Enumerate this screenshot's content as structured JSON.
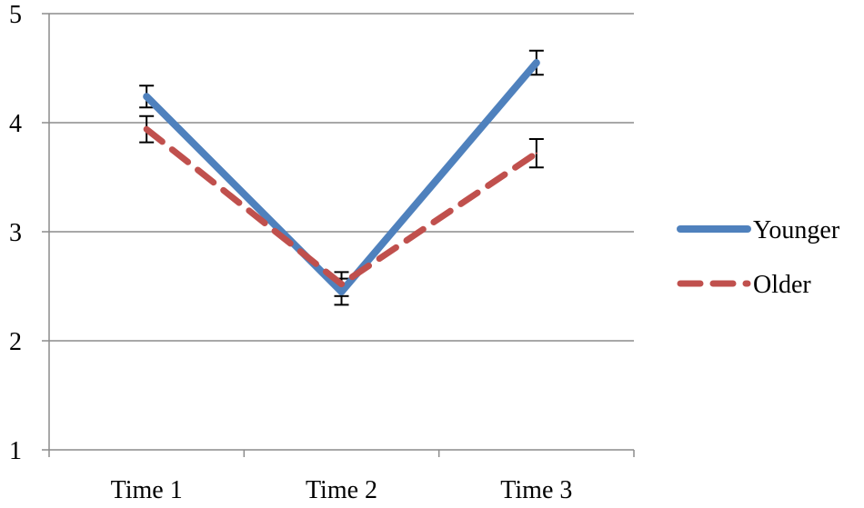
{
  "chart_data": {
    "type": "line",
    "title": "",
    "xlabel": "",
    "ylabel": "",
    "categories": [
      "Time 1",
      "Time 2",
      "Time 3"
    ],
    "ylim": [
      1,
      5
    ],
    "yticks": [
      1,
      2,
      3,
      4,
      5
    ],
    "grid": "horizontal",
    "legend_position": "right",
    "series": [
      {
        "name": "Younger",
        "values": [
          4.24,
          2.45,
          4.55
        ],
        "errors": [
          0.1,
          0.12,
          0.11
        ],
        "color": "#4F81BD",
        "style": "solid"
      },
      {
        "name": "Older",
        "values": [
          3.94,
          2.52,
          3.72
        ],
        "errors": [
          0.12,
          0.11,
          0.13
        ],
        "color": "#C0504D",
        "style": "dashed"
      }
    ]
  }
}
